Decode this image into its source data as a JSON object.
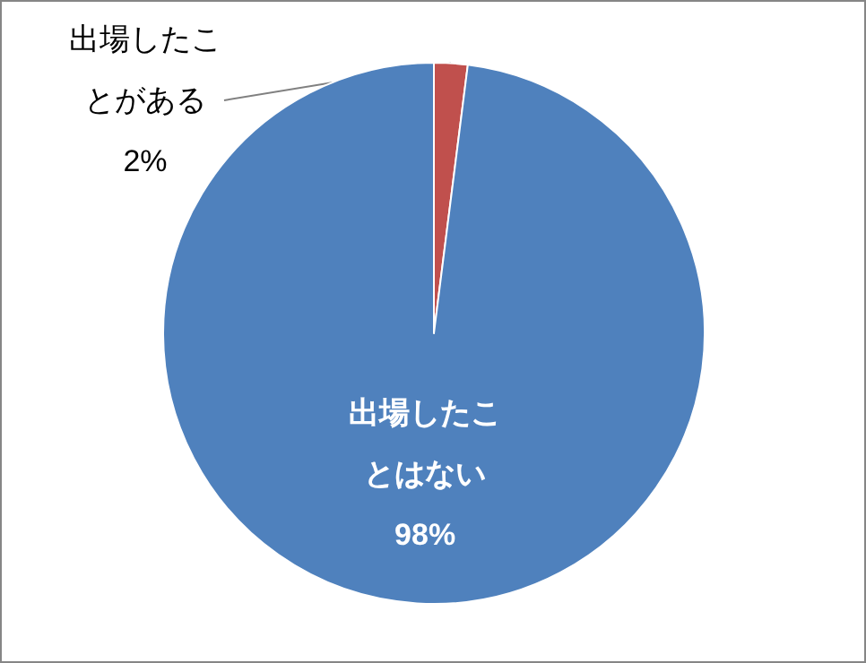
{
  "chart_data": {
    "type": "pie",
    "categories": [
      "出場したことがある",
      "出場したことはない"
    ],
    "values": [
      2,
      98
    ],
    "value_labels": [
      "2%",
      "98%"
    ],
    "colors": [
      "#c0504d",
      "#4f81bd"
    ],
    "legend": false
  }
}
